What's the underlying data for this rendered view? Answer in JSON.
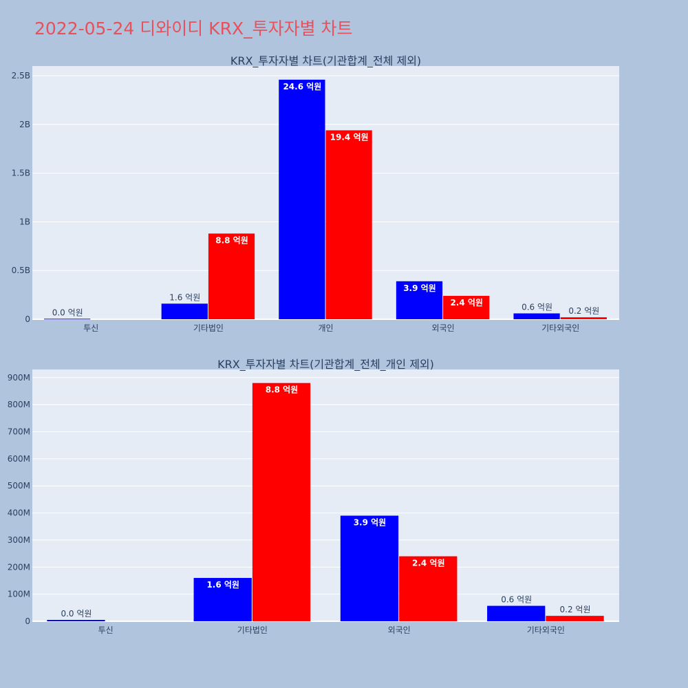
{
  "page": {
    "title": "2022-05-24 디와이디 KRX_투자자별 차트"
  },
  "colors": {
    "background": "#b0c4de",
    "plot_bg": "#e5ecf6",
    "title": "#e8505b",
    "buy": "#0000ff",
    "sell": "#ff0000"
  },
  "chart_data": [
    {
      "type": "bar",
      "title": "KRX_투자자별 차트(기관합계_전체 제외)",
      "categories": [
        "투신",
        "기타법인",
        "개인",
        "외국인",
        "기타외국인"
      ],
      "ylim": [
        0,
        2600000000
      ],
      "y_ticks": [
        {
          "value": 0,
          "label": "0"
        },
        {
          "value": 500000000,
          "label": "0.5B"
        },
        {
          "value": 1000000000,
          "label": "1B"
        },
        {
          "value": 1500000000,
          "label": "1.5B"
        },
        {
          "value": 2000000000,
          "label": "2B"
        },
        {
          "value": 2500000000,
          "label": "2.5B"
        }
      ],
      "grid": true,
      "series": [
        {
          "color": "#0000ff",
          "values": [
            5000000,
            160000000,
            2460000000,
            390000000,
            60000000
          ],
          "labels": [
            "0.0 억원",
            "1.6 억원",
            "24.6 억원",
            "3.9 억원",
            "0.6 억원"
          ]
        },
        {
          "color": "#ff0000",
          "values": [
            0,
            880000000,
            1940000000,
            240000000,
            20000000
          ],
          "labels": [
            "",
            "8.8 억원",
            "19.4 억원",
            "2.4 억원",
            "0.2 억원"
          ]
        }
      ]
    },
    {
      "type": "bar",
      "title": "KRX_투자자별 차트(기관합계_전체_개인 제외)",
      "categories": [
        "투신",
        "기타법인",
        "외국인",
        "기타외국인"
      ],
      "ylim": [
        0,
        930000000
      ],
      "y_ticks": [
        {
          "value": 0,
          "label": "0"
        },
        {
          "value": 100000000,
          "label": "100M"
        },
        {
          "value": 200000000,
          "label": "200M"
        },
        {
          "value": 300000000,
          "label": "300M"
        },
        {
          "value": 400000000,
          "label": "400M"
        },
        {
          "value": 500000000,
          "label": "500M"
        },
        {
          "value": 600000000,
          "label": "600M"
        },
        {
          "value": 700000000,
          "label": "700M"
        },
        {
          "value": 800000000,
          "label": "800M"
        },
        {
          "value": 900000000,
          "label": "900M"
        }
      ],
      "grid": true,
      "series": [
        {
          "color": "#0000ff",
          "values": [
            5000000,
            160000000,
            390000000,
            57000000
          ],
          "labels": [
            "0.0 억원",
            "1.6 억원",
            "3.9 억원",
            "0.6 억원"
          ]
        },
        {
          "color": "#ff0000",
          "values": [
            0,
            880000000,
            240000000,
            20000000
          ],
          "labels": [
            "",
            "8.8 억원",
            "2.4 억원",
            "0.2 억원"
          ]
        }
      ]
    }
  ]
}
